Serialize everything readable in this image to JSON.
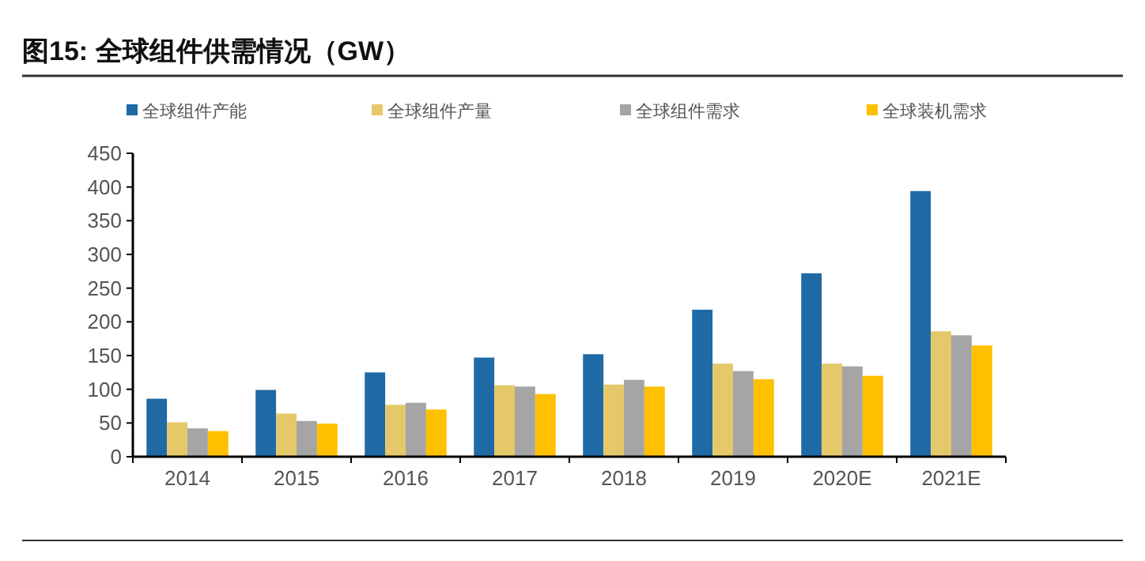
{
  "chart_data": {
    "type": "bar",
    "title": "图15:  全球组件供需情况（GW）",
    "categories": [
      "2014",
      "2015",
      "2016",
      "2017",
      "2018",
      "2019",
      "2020E",
      "2021E"
    ],
    "series": [
      {
        "name": "全球组件产能",
        "color": "#1f6aa5",
        "values": [
          86,
          99,
          125,
          147,
          152,
          218,
          272,
          394
        ]
      },
      {
        "name": "全球组件产量",
        "color": "#e5c86a",
        "values": [
          51,
          64,
          77,
          106,
          107,
          138,
          138,
          186
        ]
      },
      {
        "name": "全球组件需求",
        "color": "#a5a5a5",
        "values": [
          42,
          53,
          80,
          104,
          114,
          127,
          134,
          180
        ]
      },
      {
        "name": "全球装机需求",
        "color": "#ffc000",
        "values": [
          38,
          49,
          70,
          93,
          104,
          115,
          120,
          165
        ]
      }
    ],
    "ylim": [
      0,
      450
    ],
    "yticks": [
      0,
      50,
      100,
      150,
      200,
      250,
      300,
      350,
      400,
      450
    ],
    "grid": false,
    "legend": "top"
  }
}
